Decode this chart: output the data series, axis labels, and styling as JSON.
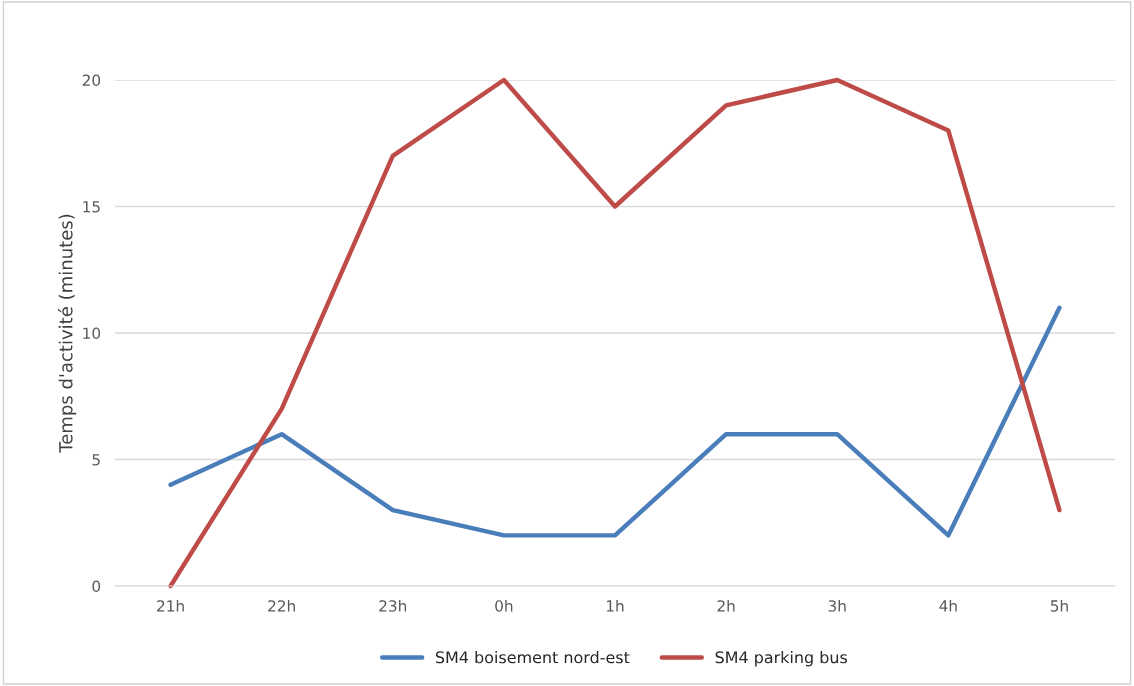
{
  "chart_data": {
    "type": "line",
    "ylabel": "Temps d'activité (minutes)",
    "categories": [
      "21h",
      "22h",
      "23h",
      "0h",
      "1h",
      "2h",
      "3h",
      "4h",
      "5h"
    ],
    "series": [
      {
        "name": "SM4 boisement nord-est",
        "color": "#4a7ebb",
        "values": [
          4,
          6,
          3,
          2,
          2,
          6,
          6,
          2,
          11
        ]
      },
      {
        "name": "SM4 parking bus",
        "color": "#be4b48",
        "values": [
          0,
          7,
          17,
          20,
          15,
          19,
          20,
          18,
          3
        ]
      }
    ],
    "ylim": [
      0,
      20
    ],
    "yticks": [
      0,
      5,
      10,
      15,
      20
    ],
    "grid": "y",
    "legend": "bottom",
    "marker": "none",
    "line_style": "solid"
  }
}
